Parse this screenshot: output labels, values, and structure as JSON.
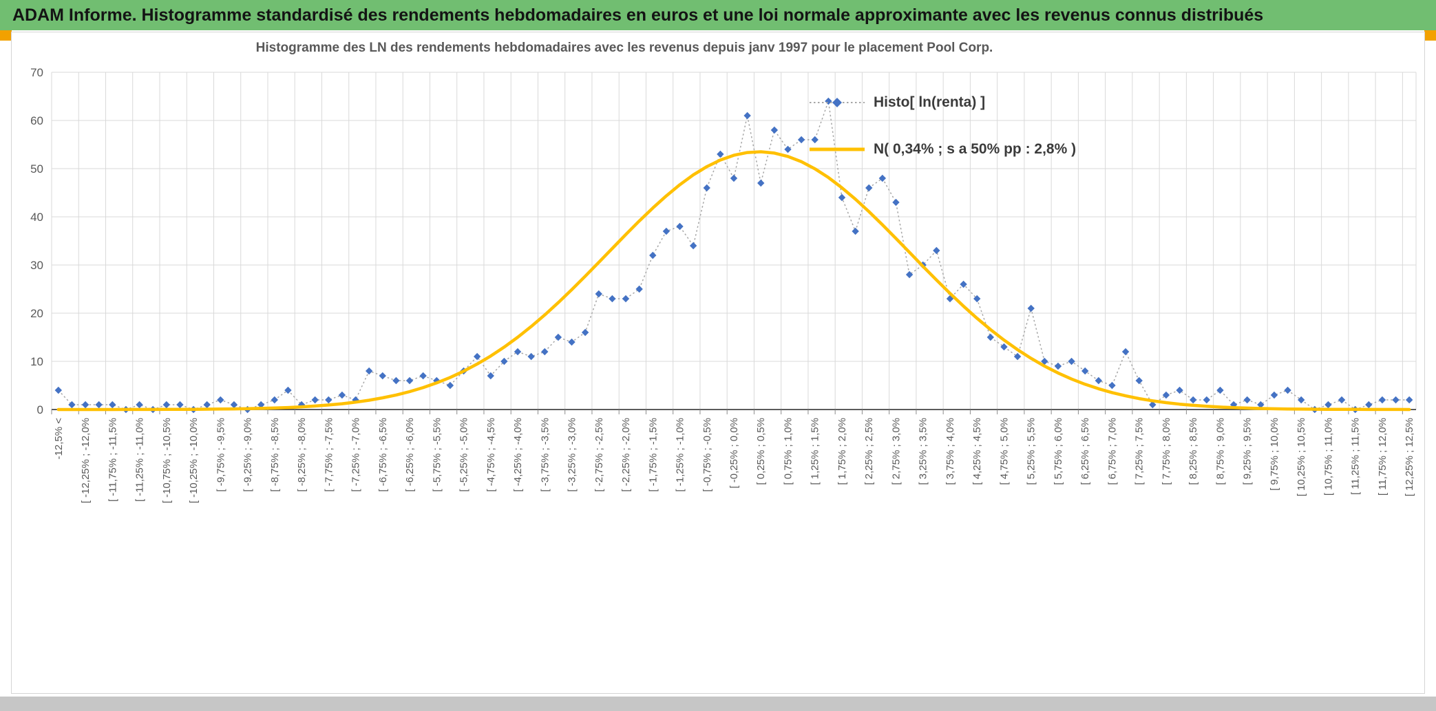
{
  "header": {
    "title": "ADAM Informe. Histogramme standardisé des rendements hebdomadaires en euros et une loi normale approximante avec les revenus connus distribués",
    "bg_color": "#71BE71",
    "accent_color": "#F2A100"
  },
  "chart_data": {
    "type": "line",
    "title": "Histogramme des LN des rendements hebdomadaires avec les revenus depuis janv 1997 pour le placement Pool Corp.",
    "xlabel": "",
    "ylabel": "",
    "ylim": [
      0,
      70
    ],
    "yticks": [
      0,
      10,
      20,
      30,
      40,
      50,
      60,
      70
    ],
    "grid": {
      "color": "#D9D9D9",
      "vertical_every_bins": 2,
      "horizontal": true
    },
    "legend_position": "top-right",
    "axis_color": "#262626",
    "tick_color": "#8A8A8A",
    "label_color": "#595959",
    "x_tick_labels": [
      "-12,5% <",
      "[ -12,25% ; -12,0%",
      "[ -11,75% ; -11,5%",
      "[ -11,25% ; -11,0%",
      "[ -10,75% ; -10,5%",
      "[ -10,25% ; -10,0%",
      "[ -9,75% ; -9,5%",
      "[ -9,25% ; -9,0%",
      "[ -8,75% ; -8,5%",
      "[ -8,25% ; -8,0%",
      "[ -7,75% ; -7,5%",
      "[ -7,25% ; -7,0%",
      "[ -6,75% ; -6,5%",
      "[ -6,25% ; -6,0%",
      "[ -5,75% ; -5,5%",
      "[ -5,25% ; -5,0%",
      "[ -4,75% ; -4,5%",
      "[ -4,25% ; -4,0%",
      "[ -3,75% ; -3,5%",
      "[ -3,25% ; -3,0%",
      "[ -2,75% ; -2,5%",
      "[ -2,25% ; -2,0%",
      "[ -1,75% ; -1,5%",
      "[ -1,25% ; -1,0%",
      "[ -0,75% ; -0,5%",
      "[ -0,25% ; 0,0%",
      "[ 0,25% ; 0,5%",
      "[ 0,75% ; 1,0%",
      "[ 1,25% ; 1,5%",
      "[ 1,75% ; 2,0%",
      "[ 2,25% ; 2,5%",
      "[ 2,75% ; 3,0%",
      "[ 3,25% ; 3,5%",
      "[ 3,75% ; 4,0%",
      "[ 4,25% ; 4,5%",
      "[ 4,75% ; 5,0%",
      "[ 5,25% ; 5,5%",
      "[ 5,75% ; 6,0%",
      "[ 6,25% ; 6,5%",
      "[ 6,75% ; 7,0%",
      "[ 7,25% ; 7,5%",
      "[ 7,75% ; 8,0%",
      "[ 8,25% ; 8,5%",
      "[ 8,75% ; 9,0%",
      "[ 9,25% ; 9,5%",
      "[ 9,75% ; 10,0%",
      "[ 10,25% ; 10,5%",
      "[ 10,75% ; 11,0%",
      "[ 11,25% ; 11,5%",
      "[ 11,75% ; 12,0%",
      "[ 12,25% ; 12,5%"
    ],
    "series": [
      {
        "name": "Histo[ ln(renta) ]",
        "type": "scatter-dotted-line",
        "marker": "diamond",
        "marker_color": "#4472C4",
        "line_color": "#A6A6A6",
        "values": [
          4,
          1,
          1,
          1,
          1,
          0,
          1,
          0,
          1,
          1,
          0,
          1,
          2,
          1,
          0,
          1,
          2,
          4,
          1,
          2,
          2,
          3,
          2,
          8,
          7,
          6,
          6,
          7,
          6,
          5,
          8,
          11,
          7,
          10,
          12,
          11,
          12,
          15,
          14,
          16,
          24,
          23,
          23,
          25,
          32,
          37,
          38,
          34,
          46,
          53,
          48,
          61,
          47,
          58,
          54,
          56,
          56,
          64,
          44,
          37,
          46,
          48,
          43,
          28,
          30,
          33,
          23,
          26,
          23,
          15,
          13,
          11,
          21,
          10,
          9,
          10,
          8,
          6,
          5,
          12,
          6,
          1,
          3,
          4,
          2,
          2,
          4,
          1,
          2,
          1,
          3,
          4,
          2,
          0,
          1,
          2,
          0,
          1,
          2,
          2,
          2
        ]
      },
      {
        "name": "N( 0,34% ; s a 50% pp : 2,8% )",
        "type": "normal-curve",
        "color": "#FFC000",
        "mean_pct": 0.34,
        "sd_pct": 2.8,
        "peak": 53.5,
        "x_center_start_pct": -12.625,
        "bin_width_pct": 0.25
      }
    ]
  }
}
